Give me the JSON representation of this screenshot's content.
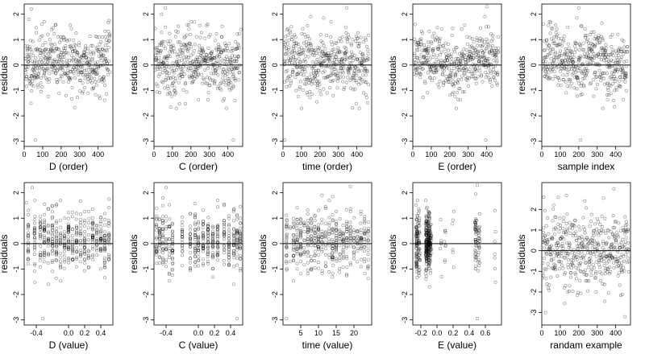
{
  "chart_data": [
    {
      "type": "scatter",
      "xlabel": "D (order)",
      "ylabel": "residuals",
      "xlim": [
        0,
        480
      ],
      "ylim": [
        -3.2,
        2.4
      ],
      "xticks": [
        "0",
        "100",
        "200",
        "300",
        "400"
      ],
      "yticks": [
        "-3",
        "-2",
        "-1",
        "0",
        "1",
        "2"
      ],
      "hline": 0,
      "pattern": "order",
      "seed": 11,
      "outliers": [
        [
          38,
          2.2
        ],
        [
          25,
          1.8
        ],
        [
          60,
          -2.95
        ],
        [
          460,
          1.75
        ]
      ]
    },
    {
      "type": "scatter",
      "xlabel": "C (order)",
      "ylabel": "residuals",
      "xlim": [
        0,
        480
      ],
      "ylim": [
        -3.2,
        2.4
      ],
      "xticks": [
        "0",
        "100",
        "200",
        "300",
        "400"
      ],
      "yticks": [
        "-3",
        "-2",
        "-1",
        "0",
        "1",
        "2"
      ],
      "hline": 0,
      "pattern": "order",
      "seed": 22,
      "outliers": [
        [
          62,
          2.25
        ],
        [
          40,
          2.0
        ],
        [
          430,
          -2.95
        ],
        [
          470,
          1.4
        ]
      ]
    },
    {
      "type": "scatter",
      "xlabel": "time (order)",
      "ylabel": "residuals",
      "xlim": [
        0,
        480
      ],
      "ylim": [
        -3.2,
        2.4
      ],
      "xticks": [
        "0",
        "100",
        "200",
        "300",
        "400"
      ],
      "yticks": [
        "-3",
        "-2",
        "-1",
        "0",
        "1",
        "2"
      ],
      "hline": 0,
      "pattern": "order",
      "seed": 33,
      "outliers": [
        [
          10,
          -2.95
        ],
        [
          345,
          2.25
        ],
        [
          220,
          1.85
        ],
        [
          150,
          1.9
        ]
      ]
    },
    {
      "type": "scatter",
      "xlabel": "E (order)",
      "ylabel": "residuals",
      "xlim": [
        0,
        480
      ],
      "ylim": [
        -3.2,
        2.4
      ],
      "xticks": [
        "0",
        "100",
        "200",
        "300",
        "400"
      ],
      "yticks": [
        "-3",
        "-2",
        "-1",
        "0",
        "1",
        "2"
      ],
      "hline": 0,
      "pattern": "order",
      "seed": 44,
      "outliers": [
        [
          400,
          2.3
        ],
        [
          390,
          1.9
        ],
        [
          395,
          -2.95
        ],
        [
          410,
          1.5
        ]
      ]
    },
    {
      "type": "scatter",
      "xlabel": "sample index",
      "ylabel": "residuals",
      "xlim": [
        0,
        480
      ],
      "ylim": [
        -3.2,
        2.4
      ],
      "xticks": [
        "0",
        "100",
        "200",
        "300",
        "400"
      ],
      "yticks": [
        "-3",
        "-2",
        "-1",
        "0",
        "1",
        "2"
      ],
      "hline": 0,
      "pattern": "sample",
      "seed": 55,
      "outliers": [
        [
          200,
          2.25
        ],
        [
          190,
          1.85
        ],
        [
          210,
          -2.95
        ],
        [
          330,
          -1.7
        ]
      ]
    },
    {
      "type": "scatter",
      "xlabel": "D (value)",
      "ylabel": "residuals",
      "xlim": [
        -0.55,
        0.55
      ],
      "ylim": [
        -3.2,
        2.4
      ],
      "xticks": [
        "-0.4",
        "0.0",
        "0.2",
        "0.4"
      ],
      "xtickvals": [
        -0.4,
        0.0,
        0.2,
        0.4
      ],
      "yticks": [
        "-3",
        "-2",
        "-1",
        "0",
        "1",
        "2"
      ],
      "hline": 0,
      "pattern": "columns",
      "seed": 66,
      "columns": [
        -0.5,
        -0.42,
        -0.35,
        -0.3,
        -0.25,
        -0.2,
        -0.15,
        -0.1,
        -0.05,
        0.0,
        0.05,
        0.1,
        0.15,
        0.2,
        0.25,
        0.3,
        0.35,
        0.4,
        0.45,
        0.5
      ],
      "outliers": [
        [
          -0.45,
          2.2
        ],
        [
          -0.32,
          -2.95
        ],
        [
          0.5,
          1.75
        ],
        [
          -0.52,
          1.6
        ]
      ]
    },
    {
      "type": "scatter",
      "xlabel": "C (value)",
      "ylabel": "residuals",
      "xlim": [
        -0.55,
        0.55
      ],
      "ylim": [
        -3.2,
        2.4
      ],
      "xticks": [
        "-0.4",
        "0.0",
        "0.2",
        "0.4"
      ],
      "xtickvals": [
        -0.4,
        0.0,
        0.2,
        0.4
      ],
      "yticks": [
        "-3",
        "-2",
        "-1",
        "0",
        "1",
        "2"
      ],
      "hline": 0,
      "pattern": "columns",
      "seed": 77,
      "columns": [
        -0.52,
        -0.48,
        -0.44,
        -0.4,
        -0.36,
        -0.32,
        -0.2,
        -0.1,
        -0.04,
        0.0,
        0.06,
        0.12,
        0.18,
        0.24,
        0.32,
        0.38,
        0.44,
        0.48,
        0.52
      ],
      "outliers": [
        [
          -0.4,
          2.2
        ],
        [
          0.48,
          -2.95
        ],
        [
          -0.44,
          1.8
        ],
        [
          0.52,
          1.0
        ]
      ]
    },
    {
      "type": "scatter",
      "xlabel": "time (value)",
      "ylabel": "residuals",
      "xlim": [
        0,
        25
      ],
      "ylim": [
        -3.2,
        2.4
      ],
      "xticks": [
        "5",
        "10",
        "15",
        "20"
      ],
      "xtickvals": [
        5,
        10,
        15,
        20
      ],
      "yticks": [
        "-3",
        "-2",
        "-1",
        "0",
        "1",
        "2"
      ],
      "hline": 0,
      "pattern": "columns",
      "seed": 88,
      "columns": [
        1,
        2,
        3,
        4,
        5,
        6,
        7,
        8,
        9,
        10,
        11,
        12,
        13,
        14,
        15,
        16,
        17,
        18,
        19,
        20,
        21,
        22,
        23,
        24
      ],
      "outliers": [
        [
          1,
          -2.95
        ],
        [
          19,
          2.25
        ],
        [
          14,
          1.85
        ],
        [
          11,
          1.9
        ]
      ]
    },
    {
      "type": "scatter",
      "xlabel": "E (value)",
      "ylabel": "residuals",
      "xlim": [
        -0.3,
        0.8
      ],
      "ylim": [
        -3.2,
        2.4
      ],
      "xticks": [
        "-0.2",
        "0.0",
        "0.2",
        "0.4",
        "0.6"
      ],
      "xtickvals": [
        -0.2,
        0.0,
        0.2,
        0.4,
        0.6
      ],
      "yticks": [
        "-3",
        "-2",
        "-1",
        "0",
        "1",
        "2"
      ],
      "hline": 0,
      "pattern": "E",
      "seed": 99,
      "outliers": [
        [
          0.5,
          2.3
        ],
        [
          0.48,
          1.95
        ],
        [
          0.5,
          -2.95
        ],
        [
          0.72,
          1.3
        ]
      ]
    },
    {
      "type": "scatter",
      "xlabel": "randam example",
      "ylabel": "residuals",
      "xlim": [
        0,
        480
      ],
      "ylim": [
        -3.6,
        3.3
      ],
      "xticks": [
        "0",
        "100",
        "200",
        "300",
        "400"
      ],
      "yticks": [
        "-3",
        "-2",
        "-1",
        "0",
        "1",
        "2"
      ],
      "hline": 0,
      "pattern": "random",
      "seed": 123,
      "outliers": [
        [
          10,
          2.6
        ],
        [
          390,
          3.0
        ],
        [
          20,
          -3.0
        ],
        [
          450,
          -3.2
        ]
      ]
    }
  ]
}
